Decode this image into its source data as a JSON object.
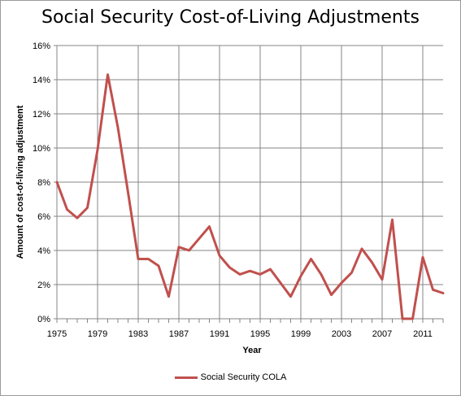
{
  "chart_data": {
    "type": "line",
    "title": "Social Security Cost-of-Living Adjustments",
    "xlabel": "Year",
    "ylabel": "Amount of cost-of-living adjustment",
    "xlim": [
      1975,
      2013
    ],
    "ylim": [
      0,
      0.16
    ],
    "x_ticks": [
      "1975",
      "1979",
      "1983",
      "1987",
      "1991",
      "1995",
      "1999",
      "2003",
      "2007",
      "2011"
    ],
    "y_ticks": [
      "0%",
      "2%",
      "4%",
      "6%",
      "8%",
      "10%",
      "12%",
      "14%",
      "16%"
    ],
    "grid": "vertical and horizontal",
    "legend_position": "bottom",
    "series": [
      {
        "name": "Social Security COLA",
        "color": "#c0504d",
        "x": [
          1975,
          1976,
          1977,
          1978,
          1979,
          1980,
          1981,
          1982,
          1983,
          1984,
          1985,
          1986,
          1987,
          1988,
          1989,
          1990,
          1991,
          1992,
          1993,
          1994,
          1995,
          1996,
          1997,
          1998,
          1999,
          2000,
          2001,
          2002,
          2003,
          2004,
          2005,
          2006,
          2007,
          2008,
          2009,
          2010,
          2011,
          2012,
          2013
        ],
        "values": [
          8.0,
          6.4,
          5.9,
          6.5,
          9.9,
          14.3,
          11.2,
          7.4,
          3.5,
          3.5,
          3.1,
          1.3,
          4.2,
          4.0,
          4.7,
          5.4,
          3.7,
          3.0,
          2.6,
          2.8,
          2.6,
          2.9,
          2.1,
          1.3,
          2.5,
          3.5,
          2.6,
          1.4,
          2.1,
          2.7,
          4.1,
          3.3,
          2.3,
          5.8,
          0.0,
          0.0,
          3.6,
          1.7,
          1.5
        ]
      }
    ]
  }
}
